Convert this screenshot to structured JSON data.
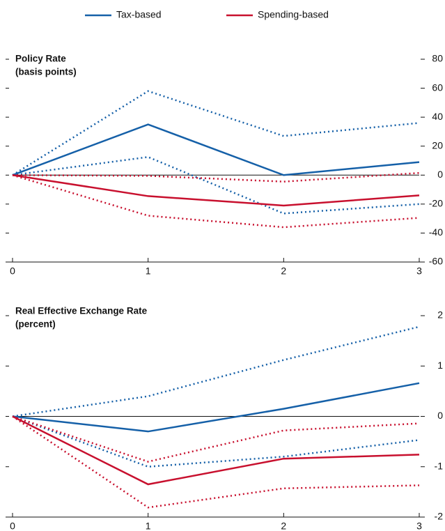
{
  "legend": {
    "items": [
      {
        "name": "Tax-based",
        "color": "#1560a8"
      },
      {
        "name": "Spending-based",
        "color": "#c8102e"
      }
    ]
  },
  "chart_data": [
    {
      "type": "line",
      "title": "Policy Rate",
      "subtitle": "(basis points)",
      "x": [
        0,
        1,
        2,
        3
      ],
      "xlim": [
        0,
        3
      ],
      "xticks": [
        0,
        1,
        2,
        3
      ],
      "ylim": [
        -60,
        80
      ],
      "yticks": [
        -60,
        -40,
        -20,
        0,
        20,
        40,
        60,
        80
      ],
      "series": [
        {
          "color": "#1560a8",
          "values": [
            0,
            35,
            0,
            9
          ],
          "upper": [
            0,
            58,
            27,
            36
          ],
          "lower": [
            0,
            12.5,
            -26.5,
            -20
          ]
        },
        {
          "color": "#c8102e",
          "values": [
            0,
            -14.5,
            -21,
            -14
          ],
          "upper": [
            0,
            -0.5,
            -4.5,
            1.5
          ],
          "lower": [
            0,
            -28,
            -36,
            -29.5
          ]
        }
      ]
    },
    {
      "type": "line",
      "title": "Real Effective Exchange Rate",
      "subtitle": "(percent)",
      "x": [
        0,
        1,
        2,
        3
      ],
      "xlim": [
        0,
        3
      ],
      "xticks": [
        0,
        1,
        2,
        3
      ],
      "ylim": [
        -2,
        2
      ],
      "yticks": [
        -2,
        -1,
        0,
        1,
        2
      ],
      "series": [
        {
          "color": "#1560a8",
          "values": [
            0,
            -0.3,
            0.15,
            0.66
          ],
          "upper": [
            0,
            0.4,
            1.12,
            1.78
          ],
          "lower": [
            0,
            -1.0,
            -0.8,
            -0.47
          ]
        },
        {
          "color": "#c8102e",
          "values": [
            0,
            -1.35,
            -0.84,
            -0.76
          ],
          "upper": [
            0,
            -0.9,
            -0.28,
            -0.14
          ],
          "lower": [
            0,
            -1.81,
            -1.43,
            -1.37
          ]
        }
      ]
    }
  ]
}
